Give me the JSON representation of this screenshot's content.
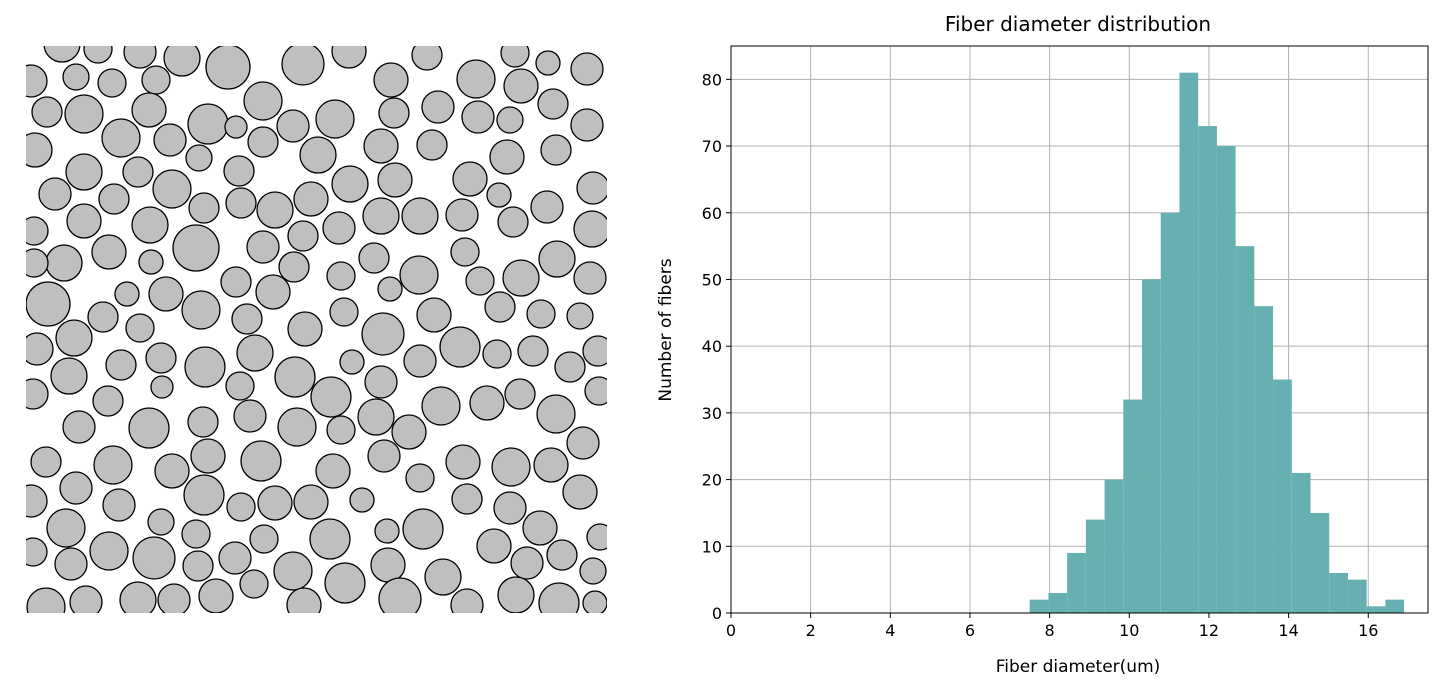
{
  "colors": {
    "fiber_fill": "#bfbfbf",
    "fiber_stroke": "#000000",
    "bar_fill": "#66b0b1",
    "grid": "#b0b0b0",
    "axis": "#000000"
  },
  "chart_data": [
    {
      "type": "scatter",
      "title": "",
      "xlabel": "",
      "ylabel": "",
      "axes_visible": false,
      "marker": "circle",
      "radius_units": "px",
      "points": [
        [
          62,
          44,
          18
        ],
        [
          98,
          49,
          14
        ],
        [
          140,
          52,
          16
        ],
        [
          182,
          58,
          18
        ],
        [
          228,
          67,
          22
        ],
        [
          303,
          64,
          21
        ],
        [
          349,
          51,
          17
        ],
        [
          427,
          55,
          15
        ],
        [
          515,
          53,
          14
        ],
        [
          548,
          63,
          12
        ],
        [
          587,
          69,
          16
        ],
        [
          476,
          79,
          19
        ],
        [
          521,
          86,
          17
        ],
        [
          391,
          80,
          17
        ],
        [
          31,
          81,
          16
        ],
        [
          76,
          77,
          13
        ],
        [
          112,
          83,
          14
        ],
        [
          156,
          80,
          14
        ],
        [
          47,
          112,
          15
        ],
        [
          84,
          114,
          19
        ],
        [
          149,
          110,
          17
        ],
        [
          208,
          124,
          20
        ],
        [
          263,
          101,
          19
        ],
        [
          394,
          113,
          15
        ],
        [
          438,
          107,
          16
        ],
        [
          478,
          117,
          16
        ],
        [
          510,
          120,
          13
        ],
        [
          553,
          104,
          15
        ],
        [
          587,
          125,
          16
        ],
        [
          121,
          138,
          19
        ],
        [
          170,
          140,
          16
        ],
        [
          199,
          158,
          13
        ],
        [
          236,
          127,
          11
        ],
        [
          293,
          126,
          16
        ],
        [
          335,
          119,
          19
        ],
        [
          35,
          150,
          17
        ],
        [
          84,
          172,
          18
        ],
        [
          138,
          172,
          15
        ],
        [
          263,
          142,
          15
        ],
        [
          318,
          155,
          18
        ],
        [
          381,
          146,
          17
        ],
        [
          432,
          145,
          15
        ],
        [
          507,
          157,
          17
        ],
        [
          556,
          150,
          15
        ],
        [
          55,
          194,
          16
        ],
        [
          114,
          199,
          15
        ],
        [
          172,
          189,
          19
        ],
        [
          204,
          208,
          15
        ],
        [
          239,
          171,
          15
        ],
        [
          241,
          203,
          15
        ],
        [
          275,
          210,
          18
        ],
        [
          311,
          199,
          17
        ],
        [
          350,
          184,
          18
        ],
        [
          395,
          180,
          17
        ],
        [
          470,
          179,
          17
        ],
        [
          499,
          195,
          12
        ],
        [
          593,
          188,
          16
        ],
        [
          84,
          221,
          17
        ],
        [
          150,
          225,
          18
        ],
        [
          420,
          216,
          18
        ],
        [
          381,
          216,
          18
        ],
        [
          462,
          215,
          16
        ],
        [
          513,
          222,
          15
        ],
        [
          547,
          207,
          16
        ],
        [
          34,
          231,
          14
        ],
        [
          303,
          236,
          15
        ],
        [
          339,
          228,
          16
        ],
        [
          592,
          229,
          18
        ],
        [
          196,
          248,
          23
        ],
        [
          109,
          252,
          17
        ],
        [
          64,
          263,
          18
        ],
        [
          151,
          262,
          12
        ],
        [
          263,
          247,
          16
        ],
        [
          294,
          267,
          15
        ],
        [
          374,
          258,
          15
        ],
        [
          419,
          275,
          19
        ],
        [
          465,
          252,
          14
        ],
        [
          557,
          259,
          18
        ],
        [
          34,
          263,
          14
        ],
        [
          236,
          282,
          15
        ],
        [
          273,
          292,
          17
        ],
        [
          341,
          276,
          14
        ],
        [
          390,
          289,
          12
        ],
        [
          480,
          281,
          14
        ],
        [
          521,
          278,
          18
        ],
        [
          590,
          278,
          16
        ],
        [
          127,
          294,
          12
        ],
        [
          166,
          294,
          17
        ],
        [
          48,
          304,
          22
        ],
        [
          201,
          310,
          19
        ],
        [
          103,
          317,
          15
        ],
        [
          140,
          328,
          14
        ],
        [
          247,
          319,
          15
        ],
        [
          305,
          329,
          17
        ],
        [
          344,
          312,
          14
        ],
        [
          434,
          315,
          17
        ],
        [
          500,
          307,
          15
        ],
        [
          541,
          314,
          14
        ],
        [
          580,
          316,
          13
        ],
        [
          74,
          338,
          18
        ],
        [
          383,
          334,
          21
        ],
        [
          37,
          349,
          16
        ],
        [
          161,
          358,
          15
        ],
        [
          255,
          353,
          18
        ],
        [
          352,
          362,
          12
        ],
        [
          420,
          361,
          16
        ],
        [
          460,
          347,
          20
        ],
        [
          497,
          354,
          14
        ],
        [
          533,
          351,
          15
        ],
        [
          570,
          367,
          15
        ],
        [
          598,
          351,
          15
        ],
        [
          121,
          365,
          15
        ],
        [
          205,
          367,
          20
        ],
        [
          295,
          377,
          20
        ],
        [
          69,
          376,
          18
        ],
        [
          162,
          387,
          11
        ],
        [
          240,
          386,
          14
        ],
        [
          381,
          382,
          16
        ],
        [
          331,
          397,
          20
        ],
        [
          33,
          394,
          15
        ],
        [
          108,
          401,
          15
        ],
        [
          441,
          406,
          19
        ],
        [
          487,
          403,
          17
        ],
        [
          520,
          394,
          15
        ],
        [
          556,
          414,
          19
        ],
        [
          599,
          391,
          14
        ],
        [
          149,
          428,
          20
        ],
        [
          203,
          422,
          15
        ],
        [
          250,
          416,
          16
        ],
        [
          297,
          427,
          19
        ],
        [
          341,
          430,
          14
        ],
        [
          376,
          417,
          18
        ],
        [
          409,
          432,
          17
        ],
        [
          79,
          427,
          16
        ],
        [
          583,
          443,
          16
        ],
        [
          208,
          456,
          17
        ],
        [
          261,
          461,
          20
        ],
        [
          46,
          462,
          15
        ],
        [
          113,
          465,
          19
        ],
        [
          172,
          471,
          17
        ],
        [
          333,
          471,
          17
        ],
        [
          384,
          456,
          16
        ],
        [
          463,
          462,
          17
        ],
        [
          511,
          467,
          19
        ],
        [
          551,
          465,
          17
        ],
        [
          420,
          478,
          14
        ],
        [
          76,
          488,
          16
        ],
        [
          204,
          495,
          20
        ],
        [
          31,
          501,
          16
        ],
        [
          119,
          505,
          16
        ],
        [
          241,
          507,
          14
        ],
        [
          275,
          503,
          17
        ],
        [
          311,
          502,
          17
        ],
        [
          362,
          500,
          12
        ],
        [
          467,
          499,
          15
        ],
        [
          510,
          508,
          16
        ],
        [
          580,
          492,
          17
        ],
        [
          66,
          528,
          19
        ],
        [
          161,
          522,
          13
        ],
        [
          196,
          534,
          14
        ],
        [
          264,
          539,
          14
        ],
        [
          330,
          539,
          20
        ],
        [
          387,
          531,
          12
        ],
        [
          423,
          529,
          20
        ],
        [
          540,
          528,
          17
        ],
        [
          600,
          537,
          13
        ],
        [
          33,
          552,
          14
        ],
        [
          109,
          551,
          19
        ],
        [
          154,
          558,
          21
        ],
        [
          71,
          564,
          16
        ],
        [
          198,
          566,
          15
        ],
        [
          235,
          558,
          16
        ],
        [
          293,
          571,
          19
        ],
        [
          388,
          565,
          17
        ],
        [
          494,
          546,
          17
        ],
        [
          527,
          563,
          16
        ],
        [
          562,
          555,
          15
        ],
        [
          593,
          571,
          13
        ],
        [
          254,
          584,
          14
        ],
        [
          345,
          583,
          20
        ],
        [
          443,
          577,
          18
        ],
        [
          46,
          607,
          19
        ],
        [
          86,
          602,
          16
        ],
        [
          138,
          600,
          18
        ],
        [
          174,
          600,
          16
        ],
        [
          216,
          596,
          17
        ],
        [
          304,
          605,
          17
        ],
        [
          400,
          599,
          21
        ],
        [
          467,
          605,
          16
        ],
        [
          516,
          595,
          18
        ],
        [
          559,
          603,
          20
        ],
        [
          595,
          603,
          12
        ]
      ]
    },
    {
      "type": "bar",
      "title": "Fiber diameter distribution",
      "xlabel": "Fiber diameter(um)",
      "ylabel": "Number of fibers",
      "xlim": [
        0,
        17.5
      ],
      "ylim": [
        0,
        85
      ],
      "xticks": [
        0,
        2,
        4,
        6,
        8,
        10,
        12,
        14,
        16
      ],
      "yticks": [
        0,
        10,
        20,
        30,
        40,
        50,
        60,
        70,
        80
      ],
      "grid": true,
      "bin_width": 0.47,
      "bin_edges": [
        7.5,
        7.97,
        8.44,
        8.91,
        9.38,
        9.85,
        10.32,
        10.79,
        11.26,
        11.73,
        12.2,
        12.67,
        13.14,
        13.61,
        14.08,
        14.55,
        15.02,
        15.49,
        15.96,
        16.43,
        16.9
      ],
      "values": [
        2,
        3,
        9,
        14,
        20,
        32,
        50,
        60,
        81,
        73,
        70,
        55,
        46,
        35,
        21,
        15,
        6,
        5,
        1,
        2
      ]
    }
  ]
}
